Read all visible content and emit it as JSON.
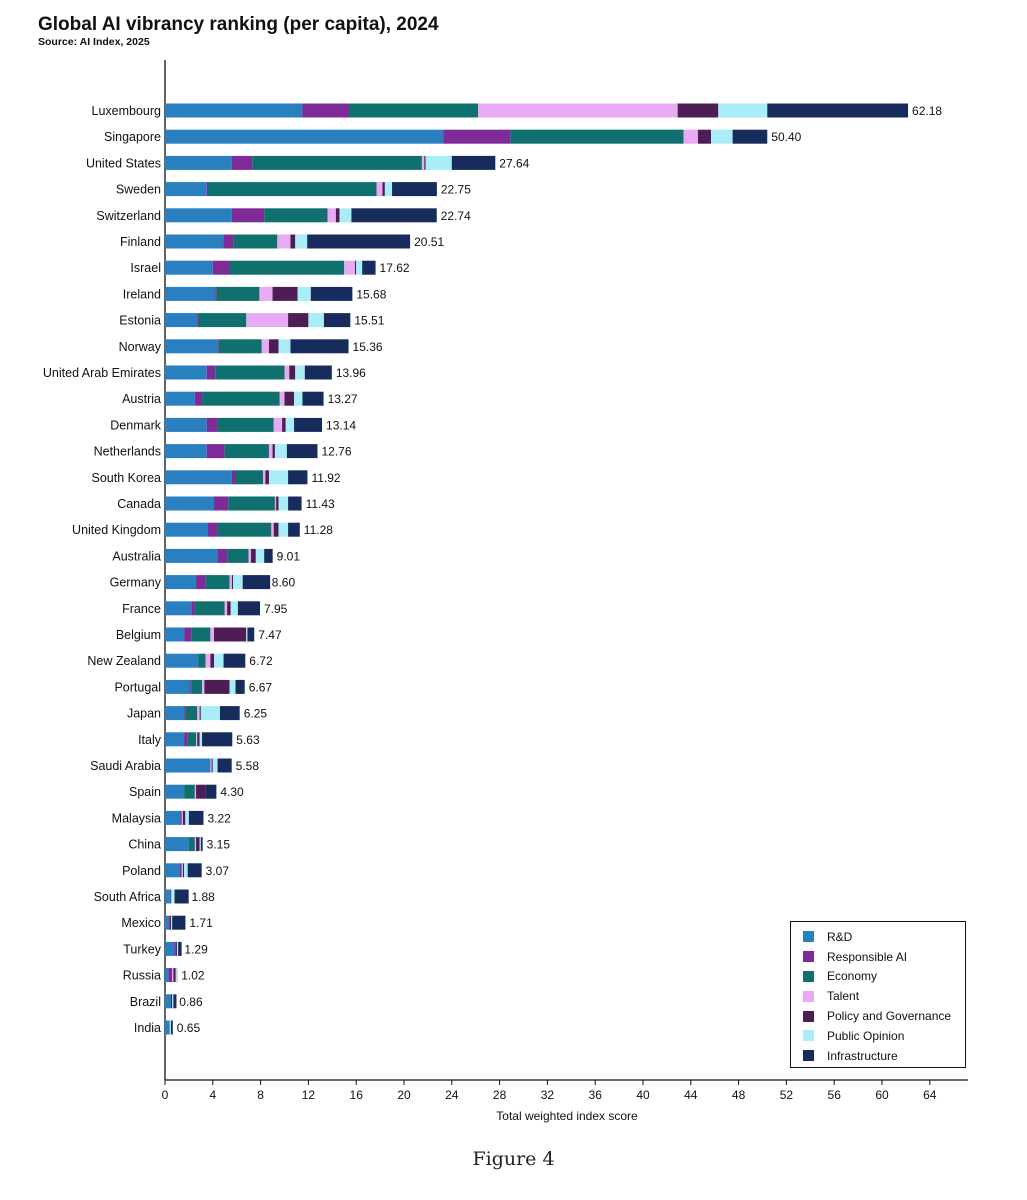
{
  "header": {
    "title": "Global AI vibrancy ranking (per capita), 2024",
    "source": "Source: AI Index, 2025"
  },
  "caption": "Figure 4",
  "chart_data": {
    "type": "bar",
    "orientation": "horizontal",
    "stacked": true,
    "title": "Global AI vibrancy ranking (per capita), 2024",
    "xlabel": "Total weighted index score",
    "ylabel": "",
    "xlim": [
      0,
      67
    ],
    "xticks": [
      0,
      4,
      8,
      12,
      16,
      20,
      24,
      28,
      32,
      36,
      40,
      44,
      48,
      52,
      56,
      60,
      64
    ],
    "grid": false,
    "legend_position": "bottom-right",
    "categories": [
      "Luxembourg",
      "Singapore",
      "United States",
      "Sweden",
      "Switzerland",
      "Finland",
      "Israel",
      "Ireland",
      "Estonia",
      "Norway",
      "United Arab Emirates",
      "Austria",
      "Denmark",
      "Netherlands",
      "South Korea",
      "Canada",
      "United Kingdom",
      "Australia",
      "Germany",
      "France",
      "Belgium",
      "New Zealand",
      "Portugal",
      "Japan",
      "Italy",
      "Saudi Arabia",
      "Spain",
      "Malaysia",
      "China",
      "Poland",
      "South Africa",
      "Mexico",
      "Turkey",
      "Russia",
      "Brazil",
      "India"
    ],
    "totals": [
      62.18,
      50.4,
      27.64,
      22.75,
      22.74,
      20.51,
      17.62,
      15.68,
      15.51,
      15.36,
      13.96,
      13.27,
      13.14,
      12.76,
      11.92,
      11.43,
      11.28,
      9.01,
      8.6,
      7.95,
      7.47,
      6.72,
      6.67,
      6.25,
      5.63,
      5.58,
      4.3,
      3.22,
      3.15,
      3.07,
      1.88,
      1.71,
      1.29,
      1.02,
      0.86,
      0.65
    ],
    "total_labels": [
      "62.18",
      "50.40",
      "27.64",
      "22.75",
      "22.74",
      "20.51",
      "17.62",
      "15.68",
      "15.51",
      "15.36",
      "13.96",
      "13.27",
      "13.14",
      "12.76",
      "11.92",
      "11.43",
      "11.28",
      "9.01",
      "8.60",
      "7.95",
      "7.47",
      "6.72",
      "6.67",
      "6.25",
      "5.63",
      "5.58",
      "4.30",
      "3.22",
      "3.15",
      "3.07",
      "1.88",
      "1.71",
      "1.29",
      "1.02",
      "0.86",
      "0.65"
    ],
    "series": [
      {
        "name": "R&D",
        "color": "#2a7fc1",
        "values": [
          11.5,
          23.3,
          5.6,
          3.5,
          5.6,
          4.9,
          4.0,
          4.2,
          2.7,
          4.4,
          3.5,
          2.5,
          3.5,
          3.5,
          5.6,
          4.1,
          3.6,
          4.4,
          2.6,
          2.2,
          1.6,
          2.8,
          2.1,
          1.6,
          1.6,
          3.8,
          1.6,
          1.3,
          2.0,
          1.2,
          0.4,
          0.3,
          0.8,
          0.3,
          0.5,
          0.4
        ]
      },
      {
        "name": "Responsible AI",
        "color": "#7e2a97",
        "values": [
          3.9,
          5.6,
          1.7,
          0.1,
          2.7,
          0.8,
          1.4,
          0.1,
          0.1,
          0.1,
          0.7,
          0.6,
          0.9,
          1.5,
          0.3,
          1.2,
          0.8,
          0.8,
          0.8,
          0.3,
          0.6,
          0.0,
          0.1,
          0.1,
          0.3,
          0.0,
          0.0,
          0.1,
          0.0,
          0.1,
          0.0,
          0.1,
          0.1,
          0.3,
          0.0,
          0.0
        ]
      },
      {
        "name": "Economy",
        "color": "#10706e",
        "values": [
          10.8,
          14.5,
          14.2,
          14.1,
          5.3,
          3.7,
          9.6,
          3.6,
          4.0,
          3.6,
          5.8,
          6.5,
          4.7,
          3.7,
          2.3,
          3.9,
          4.5,
          1.8,
          2.0,
          2.5,
          1.6,
          0.6,
          0.9,
          1.0,
          0.7,
          0.0,
          0.9,
          0.0,
          0.5,
          0.1,
          0.1,
          0.0,
          0.0,
          0.0,
          0.0,
          0.0
        ]
      },
      {
        "name": "Talent",
        "color": "#e8aaf2",
        "values": [
          16.7,
          1.2,
          0.2,
          0.5,
          0.7,
          1.1,
          0.9,
          1.1,
          3.5,
          0.6,
          0.4,
          0.4,
          0.7,
          0.3,
          0.2,
          0.1,
          0.2,
          0.2,
          0.2,
          0.2,
          0.3,
          0.4,
          0.2,
          0.2,
          0.1,
          0.1,
          0.1,
          0.1,
          0.1,
          0.1,
          0.1,
          0.0,
          0.0,
          0.1,
          0.0,
          0.0
        ]
      },
      {
        "name": "Policy and Governance",
        "color": "#4e1d55",
        "values": [
          3.4,
          1.1,
          0.1,
          0.2,
          0.3,
          0.4,
          0.1,
          2.1,
          1.7,
          0.8,
          0.5,
          0.8,
          0.3,
          0.2,
          0.3,
          0.2,
          0.4,
          0.4,
          0.1,
          0.3,
          2.7,
          0.3,
          2.1,
          0.1,
          0.2,
          0.1,
          0.8,
          0.2,
          0.3,
          0.1,
          0.0,
          0.1,
          0.1,
          0.2,
          0.1,
          0.0
        ]
      },
      {
        "name": "Public Opinion",
        "color": "#a9eef6",
        "values": [
          4.1,
          1.8,
          2.2,
          0.6,
          1.0,
          1.0,
          0.5,
          1.1,
          1.3,
          1.0,
          0.8,
          0.7,
          0.7,
          1.0,
          1.6,
          0.8,
          0.8,
          0.7,
          0.8,
          0.6,
          0.1,
          0.8,
          0.5,
          1.6,
          0.2,
          0.4,
          0.0,
          0.3,
          0.1,
          0.3,
          0.2,
          0.1,
          0.1,
          0.1,
          0.1,
          0.1
        ]
      },
      {
        "name": "Infrastructure",
        "color": "#172c5c",
        "values": [
          11.78,
          2.9,
          3.64,
          3.75,
          7.14,
          8.61,
          1.12,
          3.48,
          2.21,
          4.86,
          2.26,
          1.77,
          2.34,
          2.56,
          1.62,
          1.13,
          0.98,
          0.71,
          2.3,
          1.85,
          0.57,
          1.82,
          0.77,
          1.65,
          2.53,
          1.18,
          0.9,
          1.22,
          0.15,
          1.17,
          1.18,
          1.11,
          0.29,
          0.02,
          0.26,
          0.15
        ]
      }
    ]
  }
}
